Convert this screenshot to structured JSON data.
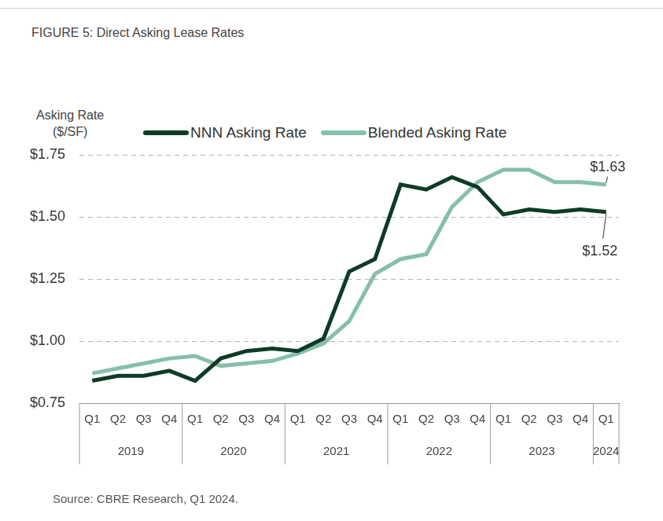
{
  "chart_data": {
    "type": "line",
    "title": "FIGURE 5: Direct Asking Lease Rates",
    "y_label": [
      "Asking Rate",
      "($/SF)"
    ],
    "source": "Source: CBRE Research, Q1 2024.",
    "categories": [
      "Q1",
      "Q2",
      "Q3",
      "Q4",
      "Q1",
      "Q2",
      "Q3",
      "Q4",
      "Q1",
      "Q2",
      "Q3",
      "Q4",
      "Q1",
      "Q2",
      "Q3",
      "Q4",
      "Q1",
      "Q2",
      "Q3",
      "Q4",
      "Q1"
    ],
    "x_groups": [
      {
        "label": "2019",
        "count": 4
      },
      {
        "label": "2020",
        "count": 4
      },
      {
        "label": "2021",
        "count": 4
      },
      {
        "label": "2022",
        "count": 4
      },
      {
        "label": "2023",
        "count": 4
      },
      {
        "label": "2024",
        "count": 1
      }
    ],
    "series": [
      {
        "name": "NNN Asking Rate",
        "color": "#0e3b27",
        "values": [
          0.84,
          0.86,
          0.86,
          0.88,
          0.84,
          0.93,
          0.96,
          0.97,
          0.96,
          1.01,
          1.28,
          1.33,
          1.63,
          1.61,
          1.66,
          1.62,
          1.51,
          1.53,
          1.52,
          1.53,
          1.52
        ],
        "value_labels": [
          null,
          null,
          null,
          null,
          null,
          null,
          null,
          null,
          null,
          null,
          null,
          null,
          null,
          null,
          null,
          null,
          null,
          null,
          null,
          null,
          "$1.52"
        ]
      },
      {
        "name": "Blended Asking Rate",
        "color": "#86bfaa",
        "values": [
          0.87,
          0.89,
          0.91,
          0.93,
          0.94,
          0.9,
          0.91,
          0.92,
          0.95,
          0.99,
          1.08,
          1.27,
          1.33,
          1.35,
          1.54,
          1.64,
          1.69,
          1.69,
          1.64,
          1.64,
          1.63
        ],
        "value_labels": [
          null,
          null,
          null,
          null,
          null,
          null,
          null,
          null,
          null,
          null,
          null,
          null,
          null,
          null,
          null,
          null,
          null,
          null,
          null,
          null,
          "$1.63"
        ]
      }
    ],
    "ylim": [
      0.75,
      1.75
    ],
    "yticks": [
      {
        "value": 0.75,
        "label": "$0.75"
      },
      {
        "value": 1.0,
        "label": "$1.00"
      },
      {
        "value": 1.25,
        "label": "$1.25"
      },
      {
        "value": 1.5,
        "label": "$1.50"
      },
      {
        "value": 1.75,
        "label": "$1.75"
      }
    ],
    "grid": true,
    "legend": "top"
  }
}
